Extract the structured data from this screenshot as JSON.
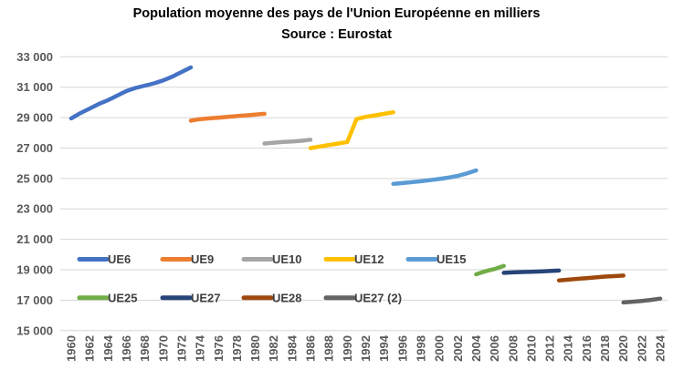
{
  "title": {
    "line1": "Population moyenne des pays de l'Union Européenne en milliers",
    "line2": "Source : Eurostat"
  },
  "colors": {
    "gridline": "#d6d6d6",
    "axis_label": "#595959",
    "legend_label": "#404040",
    "title": "#000000",
    "background": "#ffffff"
  },
  "chart_data": {
    "type": "line",
    "title": "Population moyenne des pays de l'Union Européenne en milliers",
    "subtitle": "Source : Eurostat",
    "xlabel": "",
    "ylabel": "",
    "ylim": [
      15000,
      33000
    ],
    "y_step": 2000,
    "y_tick_labels": [
      "33 000",
      "31 000",
      "29 000",
      "27 000",
      "25 000",
      "23 000",
      "21 000",
      "19 000",
      "17 000",
      "15 000"
    ],
    "x_ticks": [
      "1960",
      "1962",
      "1964",
      "1966",
      "1968",
      "1970",
      "1972",
      "1974",
      "1976",
      "1978",
      "1980",
      "1982",
      "1984",
      "1986",
      "1988",
      "1990",
      "1992",
      "1994",
      "1996",
      "1998",
      "2000",
      "2002",
      "2004",
      "2006",
      "2008",
      "2010",
      "2012",
      "2014",
      "2016",
      "2018",
      "2020",
      "2022",
      "2024"
    ],
    "grid": true,
    "legend_position": "inside bottom-left, two rows",
    "series": [
      {
        "name": "UE6",
        "color": "#4472C4",
        "years": [
          1960,
          1961,
          1962,
          1963,
          1964,
          1965,
          1966,
          1967,
          1968,
          1969,
          1970,
          1971,
          1972,
          1973
        ],
        "values": [
          28950,
          29300,
          29600,
          29900,
          30150,
          30450,
          30750,
          30950,
          31100,
          31250,
          31450,
          31700,
          32000,
          32300
        ]
      },
      {
        "name": "UE9",
        "color": "#ED7D31",
        "years": [
          1973,
          1974,
          1975,
          1976,
          1977,
          1978,
          1979,
          1980,
          1981
        ],
        "values": [
          28800,
          28900,
          28950,
          29000,
          29050,
          29100,
          29150,
          29200,
          29250
        ]
      },
      {
        "name": "UE10",
        "color": "#A5A5A5",
        "years": [
          1981,
          1982,
          1983,
          1984,
          1985,
          1986
        ],
        "values": [
          27300,
          27350,
          27400,
          27430,
          27480,
          27550
        ]
      },
      {
        "name": "UE12",
        "color": "#FFC000",
        "years": [
          1986,
          1987,
          1988,
          1989,
          1990,
          1991,
          1992,
          1993,
          1994,
          1995
        ],
        "values": [
          27000,
          27100,
          27200,
          27300,
          27400,
          28900,
          29050,
          29150,
          29250,
          29350
        ]
      },
      {
        "name": "UE15",
        "color": "#5B9BD5",
        "years": [
          1995,
          1996,
          1997,
          1998,
          1999,
          2000,
          2001,
          2002,
          2003,
          2004
        ],
        "values": [
          24650,
          24700,
          24760,
          24820,
          24890,
          24970,
          25060,
          25170,
          25330,
          25530
        ]
      },
      {
        "name": "UE25",
        "color": "#70AD47",
        "years": [
          2004,
          2005,
          2006,
          2007
        ],
        "values": [
          18700,
          18900,
          19050,
          19250
        ]
      },
      {
        "name": "UE27",
        "color": "#264478",
        "years": [
          2007,
          2008,
          2009,
          2010,
          2011,
          2012,
          2013
        ],
        "values": [
          18800,
          18830,
          18850,
          18870,
          18890,
          18920,
          18950
        ]
      },
      {
        "name": "UE28",
        "color": "#9E480E",
        "years": [
          2013,
          2014,
          2015,
          2016,
          2017,
          2018,
          2019,
          2020
        ],
        "values": [
          18300,
          18350,
          18400,
          18450,
          18500,
          18550,
          18580,
          18620
        ]
      },
      {
        "name": "UE27 (2)",
        "color": "#636363",
        "years": [
          2020,
          2021,
          2022,
          2023,
          2024
        ],
        "values": [
          16850,
          16900,
          16950,
          17020,
          17100
        ]
      }
    ]
  }
}
